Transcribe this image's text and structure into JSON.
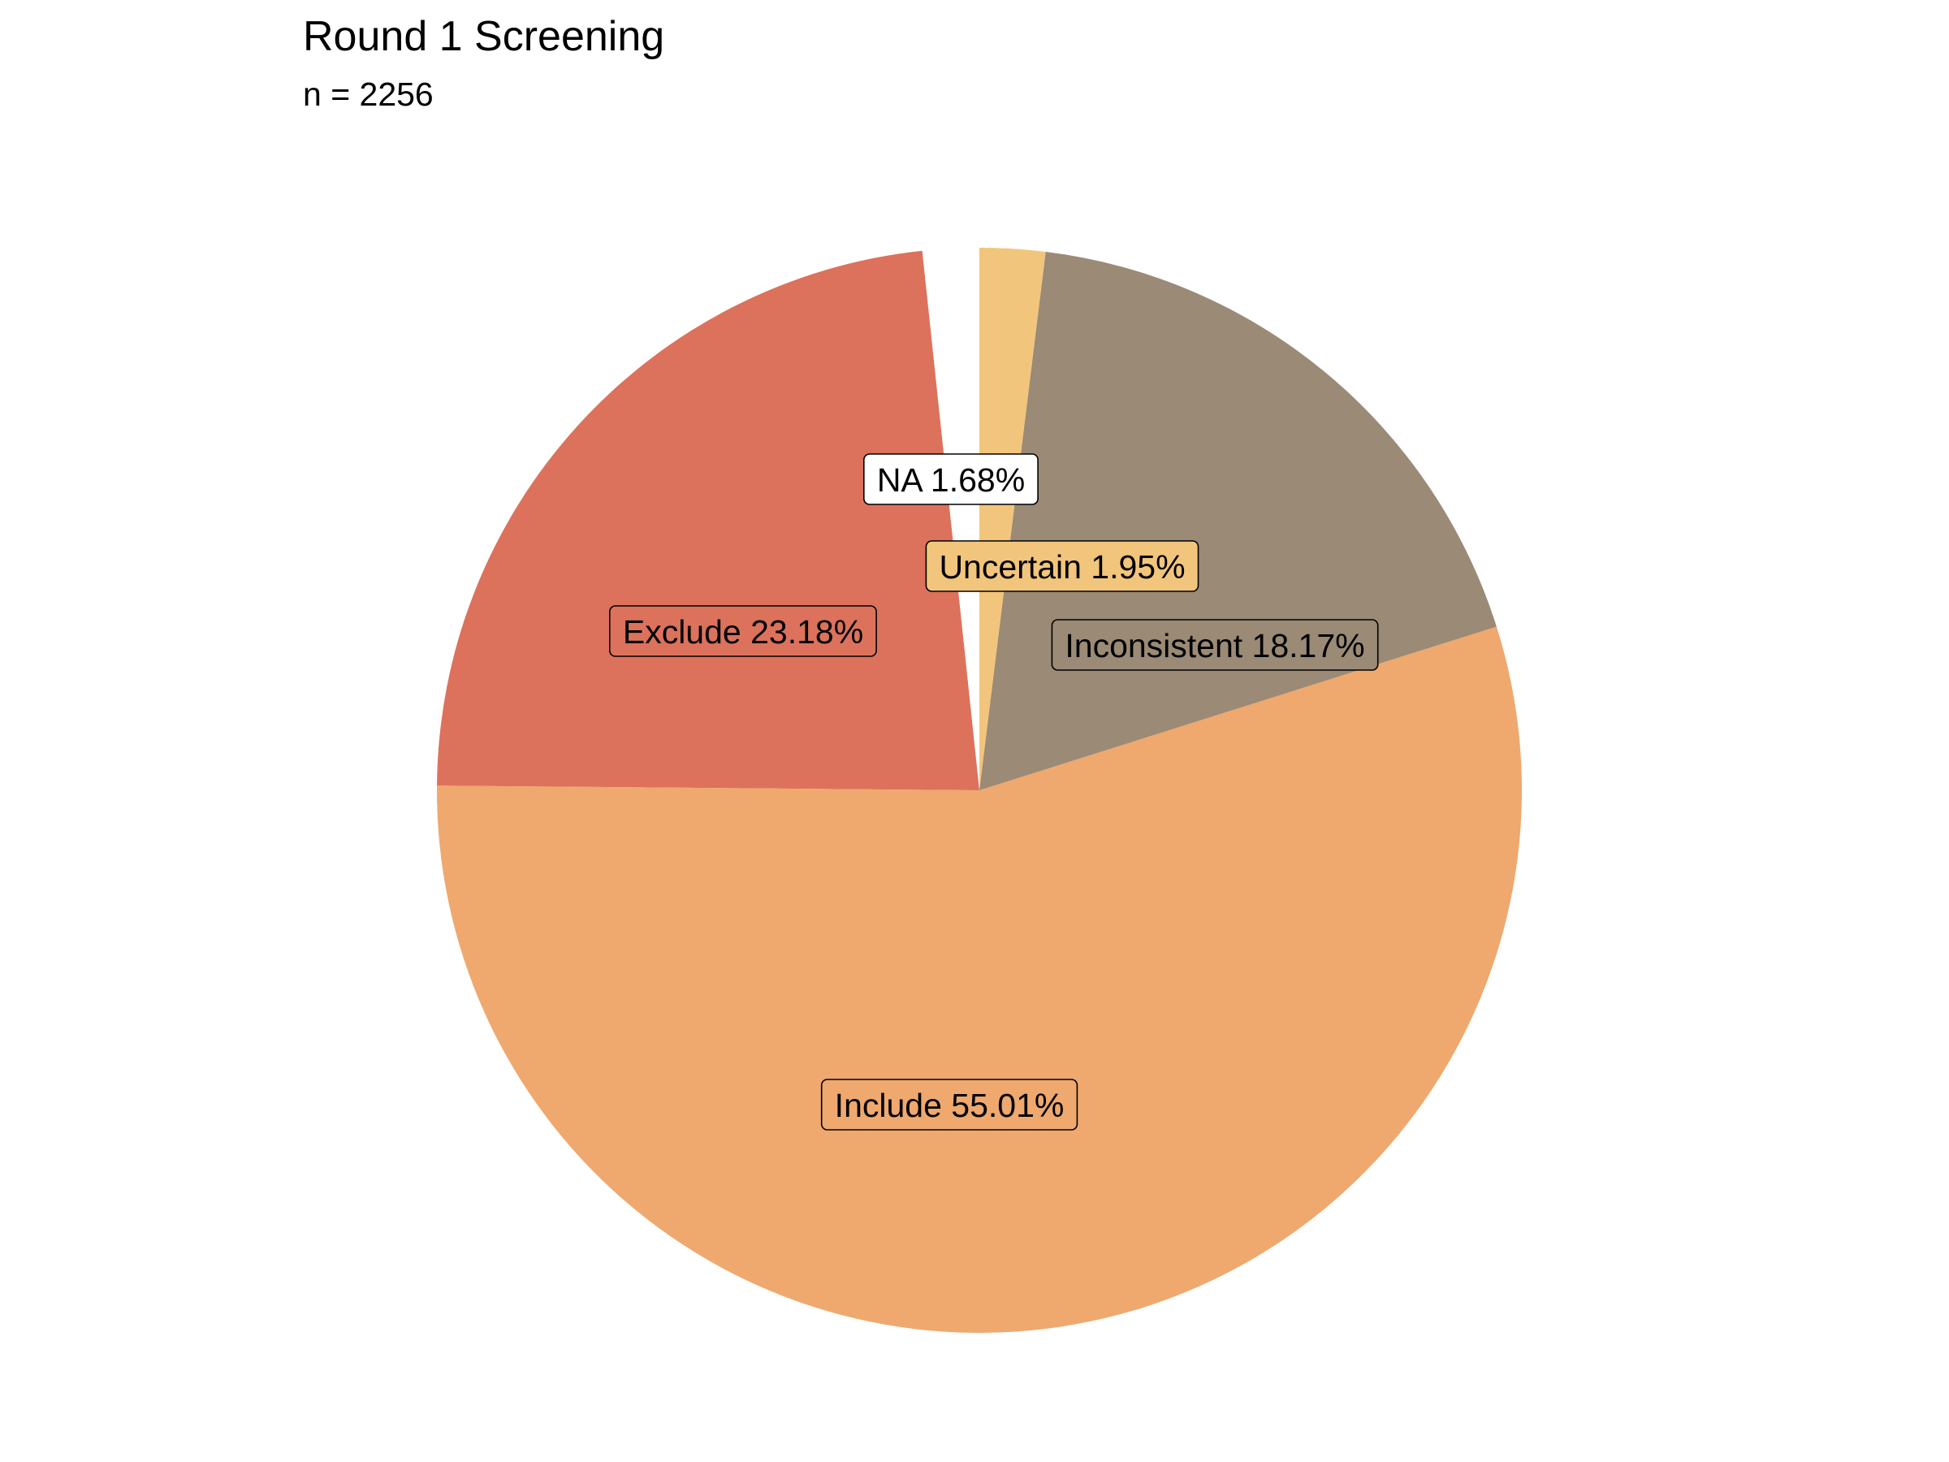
{
  "chart_data": {
    "type": "pie",
    "title": "Round 1 Screening",
    "subtitle": "n = 2256",
    "start_angle": "12 o'clock",
    "direction": "counterclockwise",
    "slices": [
      {
        "key": "na",
        "label": "NA 1.68%",
        "value": 1.68,
        "color": "#ffffff"
      },
      {
        "key": "exclude",
        "label": "Exclude 23.18%",
        "value": 23.18,
        "color": "#dc725c"
      },
      {
        "key": "include",
        "label": "Include 55.01%",
        "value": 55.01,
        "color": "#efa86e"
      },
      {
        "key": "inconsistent",
        "label": "Inconsistent 18.17%",
        "value": 18.17,
        "color": "#9a8a76"
      },
      {
        "key": "uncertain",
        "label": "Uncertain 1.95%",
        "value": 1.95,
        "color": "#f2c57c"
      }
    ]
  }
}
